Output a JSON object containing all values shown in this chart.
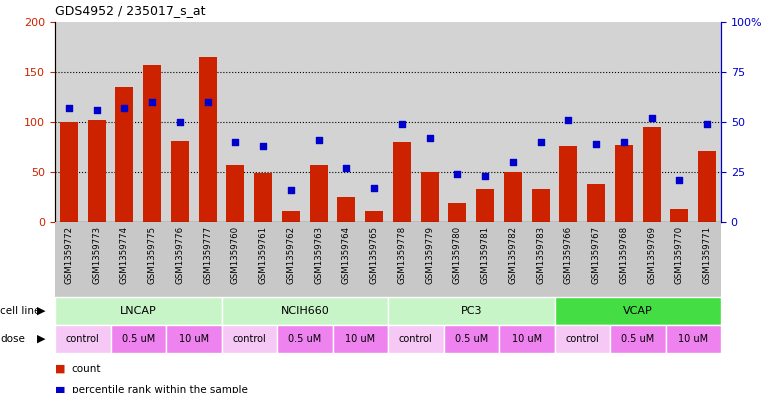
{
  "title": "GDS4952 / 235017_s_at",
  "samples": [
    "GSM1359772",
    "GSM1359773",
    "GSM1359774",
    "GSM1359775",
    "GSM1359776",
    "GSM1359777",
    "GSM1359760",
    "GSM1359761",
    "GSM1359762",
    "GSM1359763",
    "GSM1359764",
    "GSM1359765",
    "GSM1359778",
    "GSM1359779",
    "GSM1359780",
    "GSM1359781",
    "GSM1359782",
    "GSM1359783",
    "GSM1359766",
    "GSM1359767",
    "GSM1359768",
    "GSM1359769",
    "GSM1359770",
    "GSM1359771"
  ],
  "counts": [
    100,
    102,
    135,
    157,
    81,
    165,
    57,
    49,
    11,
    57,
    25,
    11,
    80,
    50,
    19,
    33,
    50,
    33,
    76,
    38,
    77,
    95,
    13,
    71
  ],
  "percentile_ranks": [
    57,
    56,
    57,
    60,
    50,
    60,
    40,
    38,
    16,
    41,
    27,
    17,
    49,
    42,
    24,
    23,
    30,
    40,
    51,
    39,
    40,
    52,
    21,
    49
  ],
  "cell_line_data": [
    {
      "name": "LNCAP",
      "start": 0,
      "end": 6,
      "color": "#c8f5c8"
    },
    {
      "name": "NCIH660",
      "start": 6,
      "end": 12,
      "color": "#c8f5c8"
    },
    {
      "name": "PC3",
      "start": 12,
      "end": 18,
      "color": "#c8f5c8"
    },
    {
      "name": "VCAP",
      "start": 18,
      "end": 24,
      "color": "#44dd44"
    }
  ],
  "dose_groups": [
    [
      [
        "control",
        "#f5c8f5"
      ],
      [
        "0.5 uM",
        "#ee82ee"
      ],
      [
        "10 uM",
        "#ee82ee"
      ]
    ],
    [
      [
        "control",
        "#f5c8f5"
      ],
      [
        "0.5 uM",
        "#ee82ee"
      ],
      [
        "10 uM",
        "#ee82ee"
      ]
    ],
    [
      [
        "control",
        "#f5c8f5"
      ],
      [
        "0.5 uM",
        "#ee82ee"
      ],
      [
        "10 uM",
        "#ee82ee"
      ]
    ],
    [
      [
        "control",
        "#f5c8f5"
      ],
      [
        "0.5 uM",
        "#ee82ee"
      ],
      [
        "10 uM",
        "#ee82ee"
      ]
    ]
  ],
  "bar_color": "#cc2200",
  "dot_color": "#0000cc",
  "plot_bg": "#d3d3d3",
  "tick_bg": "#c8c8c8",
  "ylim_left": [
    0,
    200
  ],
  "ylim_right": [
    0,
    100
  ],
  "yticks_left": [
    0,
    50,
    100,
    150,
    200
  ],
  "yticks_right": [
    0,
    25,
    50,
    75,
    100
  ],
  "left_tick_color": "#cc2200",
  "right_tick_color": "#0000cc"
}
